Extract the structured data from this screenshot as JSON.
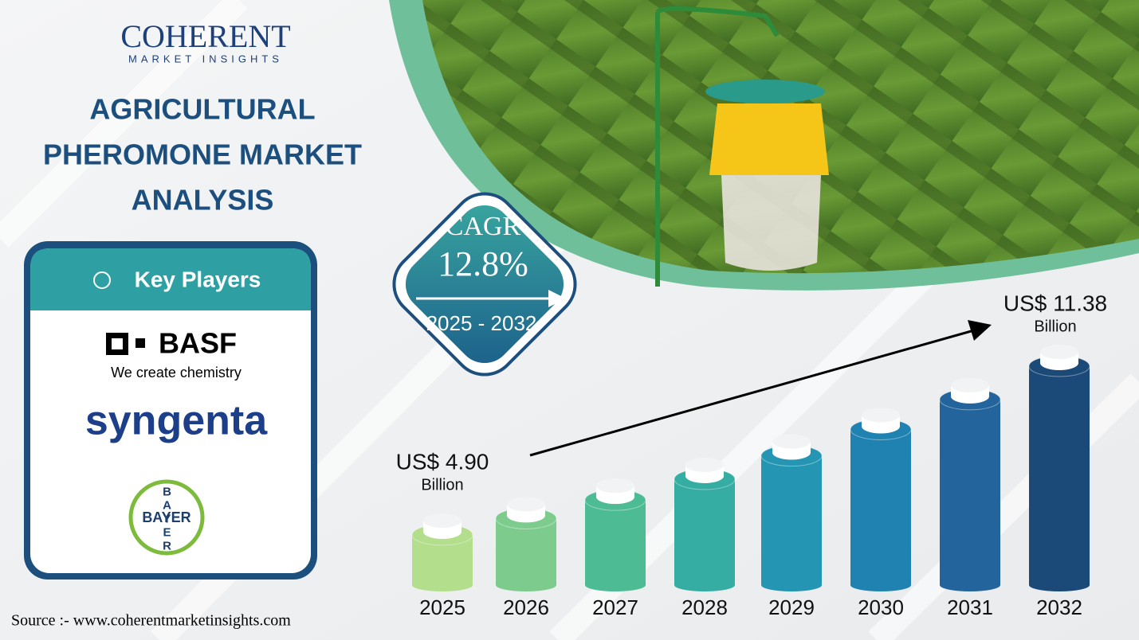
{
  "logo": {
    "name": "COHERENT",
    "tagline": "MARKET INSIGHTS"
  },
  "title_lines": [
    "AGRICULTURAL",
    "PHEROMONE MARKET",
    "ANALYSIS"
  ],
  "cagr": {
    "label": "CAGR",
    "value": "12.8%",
    "period": "2025 - 2032"
  },
  "key_players": {
    "heading": "Key Players",
    "basf": "BASF",
    "basf_tagline": "We create chemistry",
    "syngenta": "syngenta",
    "bayer": "BAYER"
  },
  "source": "Source :- www.coherentmarketinsights.com",
  "chart_data": {
    "type": "bar",
    "categories": [
      "2025",
      "2026",
      "2027",
      "2028",
      "2029",
      "2030",
      "2031",
      "2032"
    ],
    "values": [
      4.9,
      5.53,
      6.24,
      7.04,
      7.94,
      8.95,
      10.1,
      11.38
    ],
    "value_labels": [
      "US$ 4.90",
      null,
      null,
      null,
      null,
      null,
      null,
      "US$ 11.38"
    ],
    "unit": "Billion",
    "colors": [
      "#b3de8c",
      "#7dcc8e",
      "#4dbb94",
      "#35ada3",
      "#2496b3",
      "#1f82b0",
      "#22649b",
      "#1c4a78"
    ]
  }
}
